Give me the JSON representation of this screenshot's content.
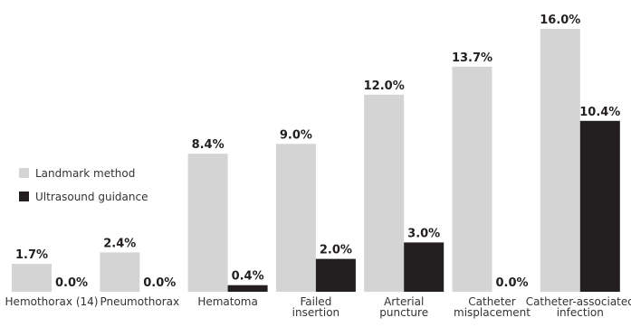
{
  "chart_data": {
    "type": "bar",
    "categories": [
      [
        "Hemothorax (14)"
      ],
      [
        "Pneumothorax"
      ],
      [
        "Hematoma"
      ],
      [
        "Failed",
        "insertion"
      ],
      [
        "Arterial",
        "puncture"
      ],
      [
        "Catheter",
        "misplacement"
      ],
      [
        "Catheter-associated",
        "infection"
      ]
    ],
    "series": [
      {
        "name": "Landmark method",
        "color": "#d4d4d4",
        "values": [
          1.7,
          2.4,
          8.4,
          9.0,
          12.0,
          13.7,
          16.0
        ],
        "labels": [
          "1.7%",
          "2.4%",
          "8.4%",
          "9.0%",
          "12.0%",
          "13.7%",
          "16.0%"
        ]
      },
      {
        "name": "Ultrasound guidance",
        "color": "#231f20",
        "values": [
          0.0,
          0.0,
          0.4,
          2.0,
          3.0,
          0.0,
          10.4
        ],
        "labels": [
          "0.0%",
          "0.0%",
          "0.4%",
          "2.0%",
          "3.0%",
          "0.0%",
          "10.4%"
        ]
      }
    ],
    "legend": {
      "position": "left",
      "items": [
        "Landmark method",
        "Ultrasound guidance"
      ]
    },
    "ylim": [
      0,
      16
    ],
    "title": "",
    "xlabel": "",
    "ylabel": "",
    "grid": false
  }
}
